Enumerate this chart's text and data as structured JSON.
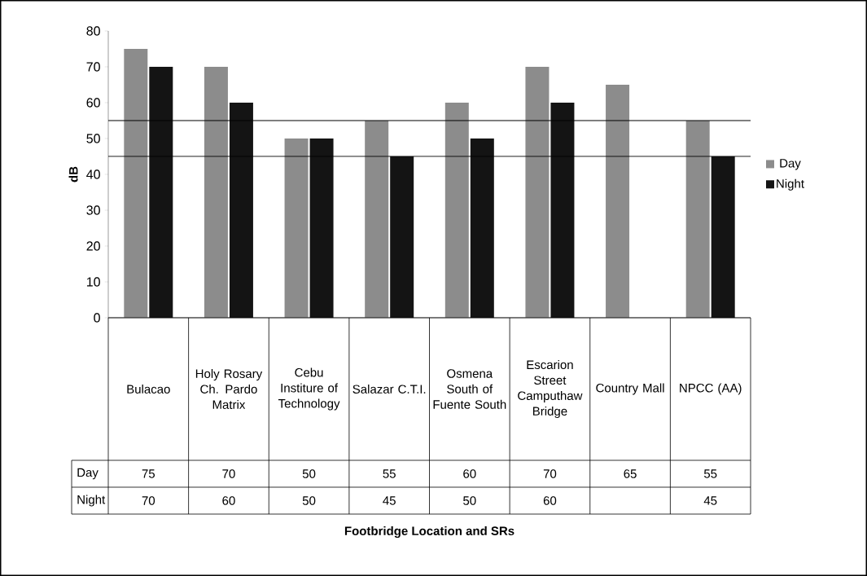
{
  "chart_data": {
    "type": "bar",
    "annotations": [
      "Footbridge Location and SRs"
    ],
    "ylabel": "dB",
    "categories": [
      "Bulacao",
      "Holy Rosary Ch. Pardo Matrix",
      "Cebu Institure of Technology",
      "Salazar C.T.I.",
      "Osmena South of Fuente South",
      "Escarion Street Camputhaw Bridge",
      "Country Mall",
      "NPCC (AA)"
    ],
    "series": [
      {
        "name": "Day",
        "color": "#8c8c8c",
        "values": [
          75,
          70,
          50,
          55,
          60,
          70,
          65,
          55
        ]
      },
      {
        "name": "Night",
        "color": "#141414",
        "values": [
          70,
          60,
          50,
          45,
          50,
          60,
          null,
          45
        ]
      }
    ],
    "ylim": [
      0,
      80
    ],
    "yticks": [
      0,
      10,
      20,
      30,
      40,
      50,
      60,
      70,
      80
    ],
    "ref_lines": [
      {
        "axis": "y",
        "value": 55,
        "color": "#000000"
      },
      {
        "axis": "y",
        "value": 45,
        "color": "#000000"
      }
    ],
    "data_labels": true,
    "grid": false,
    "legend": "right"
  }
}
